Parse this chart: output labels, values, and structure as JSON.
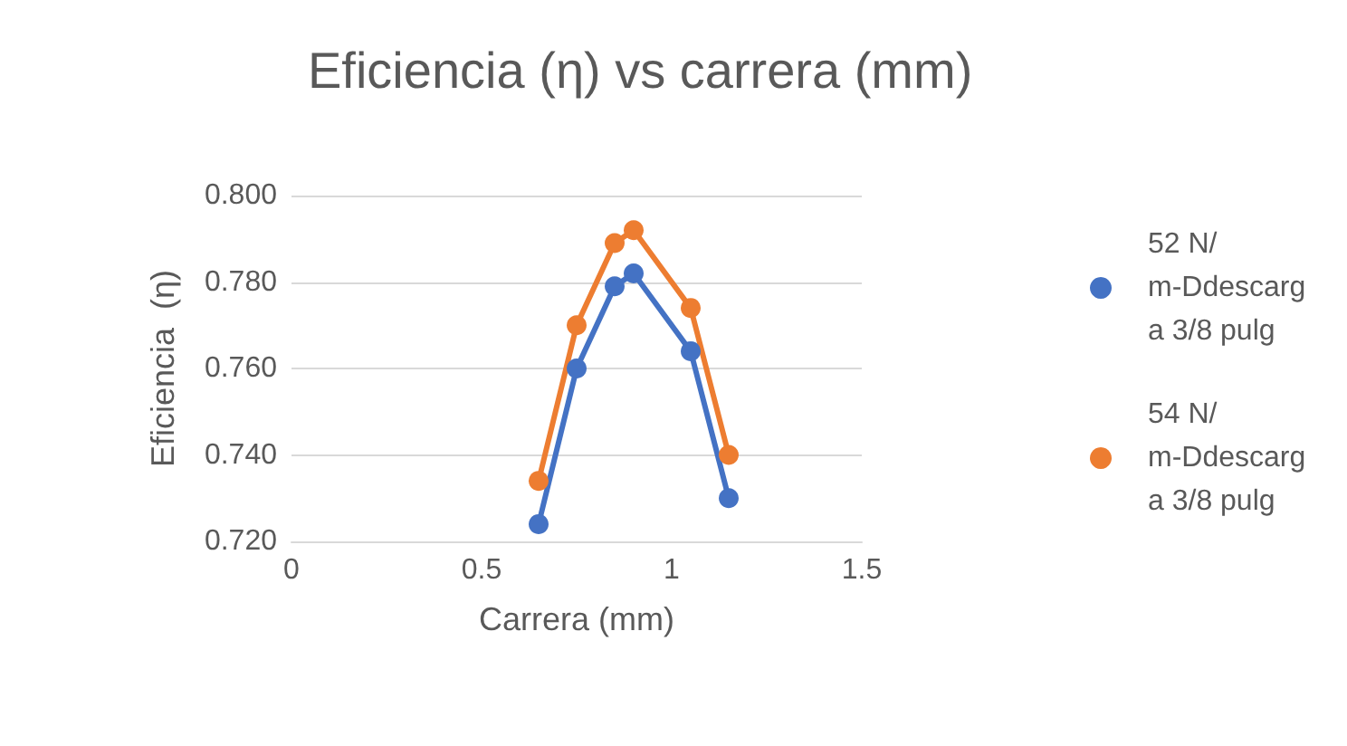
{
  "chart_data": {
    "type": "line",
    "title": "Eficiencia (η) vs carrera (mm)",
    "xlabel": "Carrera (mm)",
    "ylabel": "Eficiencia  (η)",
    "x": [
      0.65,
      0.75,
      0.85,
      0.9,
      1.05,
      1.15
    ],
    "series": [
      {
        "name": "52 N/m-Ddescarga 3/8 pulg",
        "color": "#4472c4",
        "values": [
          0.724,
          0.76,
          0.779,
          0.782,
          0.764,
          0.73
        ]
      },
      {
        "name": "54 N/m-Ddescarga 3/8 pulg",
        "color": "#ed7d31",
        "values": [
          0.734,
          0.77,
          0.789,
          0.792,
          0.774,
          0.74
        ]
      }
    ],
    "xlim": [
      0,
      1.5
    ],
    "xticks": [
      0,
      0.5,
      1,
      1.5
    ],
    "ylim": [
      0.72,
      0.8
    ],
    "yticks": [
      {
        "value": 0.72,
        "label": "0.720"
      },
      {
        "value": 0.74,
        "label": "0.740"
      },
      {
        "value": 0.76,
        "label": "0.760"
      },
      {
        "value": 0.78,
        "label": "0.780"
      },
      {
        "value": 0.8,
        "label": "0.800"
      }
    ],
    "grid": "y",
    "legend": "right",
    "marker": "circle",
    "line_style": "solid"
  }
}
